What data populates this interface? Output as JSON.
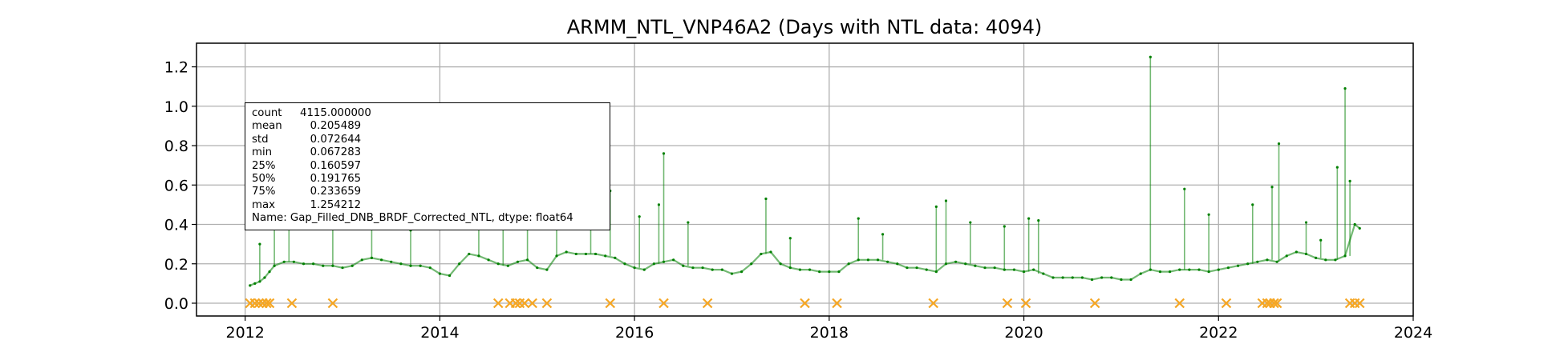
{
  "chart_data": {
    "type": "line",
    "title": "ARMM_NTL_VNP46A2 (Days with NTL data: 4094)",
    "xlabel": "",
    "ylabel": "",
    "xlim": [
      2011.5,
      2024.0
    ],
    "ylim": [
      -0.065,
      1.32
    ],
    "x_ticks": [
      "2012",
      "2014",
      "2016",
      "2018",
      "2020",
      "2022",
      "2024"
    ],
    "x_tick_values": [
      2012,
      2014,
      2016,
      2018,
      2020,
      2022,
      2024
    ],
    "y_ticks": [
      "0.0",
      "0.2",
      "0.4",
      "0.6",
      "0.8",
      "1.0",
      "1.2"
    ],
    "y_tick_values": [
      0.0,
      0.2,
      0.4,
      0.6,
      0.8,
      1.0,
      1.2
    ],
    "grid": true,
    "series": [
      {
        "color": "#008000",
        "x": [
          2012.05,
          2012.1,
          2012.15,
          2012.2,
          2012.25,
          2012.3,
          2012.4,
          2012.5,
          2012.6,
          2012.7,
          2012.8,
          2012.9,
          2013.0,
          2013.1,
          2013.2,
          2013.3,
          2013.4,
          2013.5,
          2013.6,
          2013.7,
          2013.8,
          2013.9,
          2014.0,
          2014.1,
          2014.2,
          2014.3,
          2014.4,
          2014.5,
          2014.6,
          2014.7,
          2014.8,
          2014.9,
          2015.0,
          2015.1,
          2015.2,
          2015.3,
          2015.4,
          2015.5,
          2015.6,
          2015.7,
          2015.8,
          2015.9,
          2016.0,
          2016.1,
          2016.2,
          2016.3,
          2016.4,
          2016.5,
          2016.6,
          2016.7,
          2016.8,
          2016.9,
          2017.0,
          2017.1,
          2017.2,
          2017.3,
          2017.4,
          2017.5,
          2017.6,
          2017.7,
          2017.8,
          2017.9,
          2018.0,
          2018.1,
          2018.2,
          2018.3,
          2018.4,
          2018.5,
          2018.6,
          2018.7,
          2018.8,
          2018.9,
          2019.0,
          2019.1,
          2019.2,
          2019.3,
          2019.4,
          2019.5,
          2019.6,
          2019.7,
          2019.8,
          2019.9,
          2020.0,
          2020.1,
          2020.2,
          2020.3,
          2020.4,
          2020.5,
          2020.6,
          2020.7,
          2020.8,
          2020.9,
          2021.0,
          2021.1,
          2021.2,
          2021.3,
          2021.4,
          2021.5,
          2021.6,
          2021.7,
          2021.8,
          2021.9,
          2022.0,
          2022.1,
          2022.2,
          2022.3,
          2022.4,
          2022.5,
          2022.6,
          2022.7,
          2022.8,
          2022.9,
          2023.0,
          2023.1,
          2023.2,
          2023.3,
          2023.4,
          2023.45
        ],
        "y": [
          0.09,
          0.1,
          0.11,
          0.13,
          0.16,
          0.19,
          0.21,
          0.21,
          0.2,
          0.2,
          0.19,
          0.19,
          0.18,
          0.19,
          0.22,
          0.23,
          0.22,
          0.21,
          0.2,
          0.19,
          0.19,
          0.18,
          0.15,
          0.14,
          0.2,
          0.25,
          0.24,
          0.22,
          0.2,
          0.19,
          0.21,
          0.22,
          0.18,
          0.17,
          0.24,
          0.26,
          0.25,
          0.25,
          0.25,
          0.24,
          0.23,
          0.2,
          0.18,
          0.17,
          0.2,
          0.21,
          0.22,
          0.19,
          0.18,
          0.18,
          0.17,
          0.17,
          0.15,
          0.16,
          0.2,
          0.25,
          0.26,
          0.2,
          0.18,
          0.17,
          0.17,
          0.16,
          0.16,
          0.16,
          0.2,
          0.22,
          0.22,
          0.22,
          0.21,
          0.2,
          0.18,
          0.18,
          0.17,
          0.16,
          0.2,
          0.21,
          0.2,
          0.19,
          0.18,
          0.18,
          0.17,
          0.17,
          0.16,
          0.17,
          0.15,
          0.13,
          0.13,
          0.13,
          0.13,
          0.12,
          0.13,
          0.13,
          0.12,
          0.12,
          0.15,
          0.17,
          0.16,
          0.16,
          0.17,
          0.17,
          0.17,
          0.16,
          0.17,
          0.18,
          0.19,
          0.2,
          0.21,
          0.22,
          0.21,
          0.24,
          0.26,
          0.25,
          0.23,
          0.22,
          0.22,
          0.24,
          0.4,
          0.38
        ]
      },
      {
        "color": "#008000",
        "x": [
          2012.15,
          2012.3,
          2012.45,
          2012.9,
          2013.3,
          2013.7,
          2014.4,
          2014.65,
          2014.9,
          2015.2,
          2015.55,
          2015.75,
          2016.05,
          2016.25,
          2016.3,
          2016.55,
          2017.35,
          2017.6,
          2018.3,
          2018.55,
          2019.1,
          2019.2,
          2019.45,
          2019.8,
          2020.05,
          2020.15,
          2021.3,
          2021.65,
          2021.9,
          2022.35,
          2022.55,
          2022.62,
          2022.9,
          2023.05,
          2023.22,
          2023.3,
          2023.35
        ],
        "y": [
          0.3,
          0.38,
          0.42,
          0.41,
          0.48,
          0.37,
          0.56,
          0.53,
          0.45,
          0.46,
          0.43,
          0.57,
          0.44,
          0.5,
          0.76,
          0.41,
          0.53,
          0.33,
          0.43,
          0.35,
          0.49,
          0.52,
          0.41,
          0.39,
          0.43,
          0.42,
          1.25,
          0.58,
          0.45,
          0.5,
          0.59,
          0.81,
          0.41,
          0.32,
          0.69,
          1.09,
          0.62
        ]
      },
      {
        "color": "#f5a623",
        "marker": "x",
        "x": [
          2012.05,
          2012.1,
          2012.14,
          2012.18,
          2012.22,
          2012.25,
          2012.48,
          2012.9,
          2014.6,
          2014.72,
          2014.78,
          2014.82,
          2014.87,
          2014.95,
          2015.1,
          2015.75,
          2016.3,
          2016.75,
          2017.75,
          2018.08,
          2019.07,
          2019.83,
          2020.02,
          2020.73,
          2021.6,
          2022.08,
          2022.45,
          2022.5,
          2022.53,
          2022.57,
          2022.6,
          2023.35,
          2023.4,
          2023.45
        ],
        "y": [
          0,
          0,
          0,
          0,
          0,
          0,
          0,
          0,
          0,
          0,
          0,
          0,
          0,
          0,
          0,
          0,
          0,
          0,
          0,
          0,
          0,
          0,
          0,
          0,
          0,
          0,
          0,
          0,
          0,
          0,
          0,
          0,
          0,
          0
        ]
      }
    ],
    "annotation": {
      "rows": [
        {
          "key": "count",
          "value": "4115.000000"
        },
        {
          "key": "mean",
          "value": "   0.205489"
        },
        {
          "key": "std",
          "value": "   0.072644"
        },
        {
          "key": "min",
          "value": "   0.067283"
        },
        {
          "key": "25%",
          "value": "   0.160597"
        },
        {
          "key": "50%",
          "value": "   0.191765"
        },
        {
          "key": "75%",
          "value": "   0.233659"
        },
        {
          "key": "max",
          "value": "   1.254212"
        }
      ],
      "name_line": "Name: Gap_Filled_DNB_BRDF_Corrected_NTL, dtype: float64"
    }
  }
}
